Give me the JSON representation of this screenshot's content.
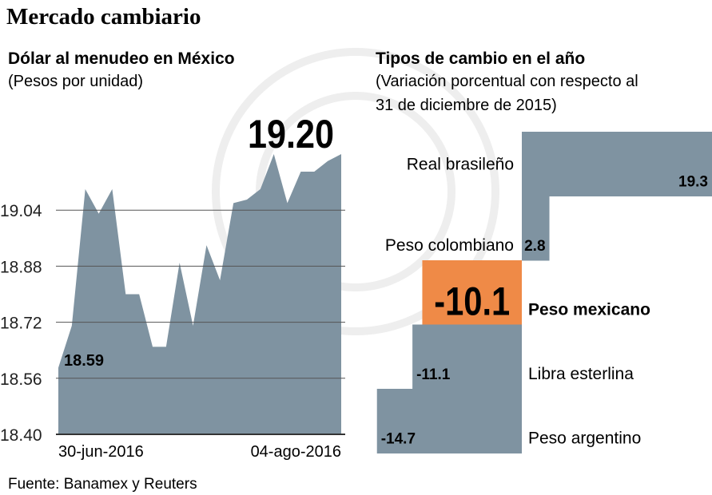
{
  "title": "Mercado cambiario",
  "source": "Fuente: Banamex y Reuters",
  "colors": {
    "bar": "#7f93a1",
    "highlight": "#ef8a47",
    "text": "#222222",
    "grid": "#555555"
  },
  "chart_data": [
    {
      "type": "area",
      "title": "Dólar al menudeo en México",
      "subtitle": "(Pesos por unidad)",
      "ylim": [
        18.4,
        19.2
      ],
      "y_ticks": [
        "19.04",
        "18.88",
        "18.72",
        "18.56",
        "18.40"
      ],
      "x_tick_labels": [
        "30-jun-2016",
        "04-ago-2016"
      ],
      "grid": true,
      "values": [
        18.59,
        18.71,
        19.1,
        19.03,
        19.1,
        18.8,
        18.8,
        18.65,
        18.65,
        18.89,
        18.71,
        18.94,
        18.84,
        19.06,
        19.07,
        19.1,
        19.2,
        19.06,
        19.15,
        19.15,
        19.18,
        19.2
      ],
      "labels": {
        "start": "18.59",
        "end": "19.20"
      }
    },
    {
      "type": "bar",
      "orientation": "horizontal",
      "title": "Tipos de cambio en el año",
      "subtitle_line1": "(Variación porcentual con respecto al",
      "subtitle_line2": "31 de diciembre de 2015)",
      "categories": [
        "Real brasileño",
        "Peso colombiano",
        "Peso mexicano",
        "Libra esterlina",
        "Peso argentino"
      ],
      "values": [
        19.3,
        2.8,
        -10.1,
        -11.1,
        -14.7
      ],
      "value_labels": [
        "19.3",
        "2.8",
        "-10.1",
        "-11.1",
        "-14.7"
      ],
      "highlight": "Peso mexicano"
    }
  ]
}
